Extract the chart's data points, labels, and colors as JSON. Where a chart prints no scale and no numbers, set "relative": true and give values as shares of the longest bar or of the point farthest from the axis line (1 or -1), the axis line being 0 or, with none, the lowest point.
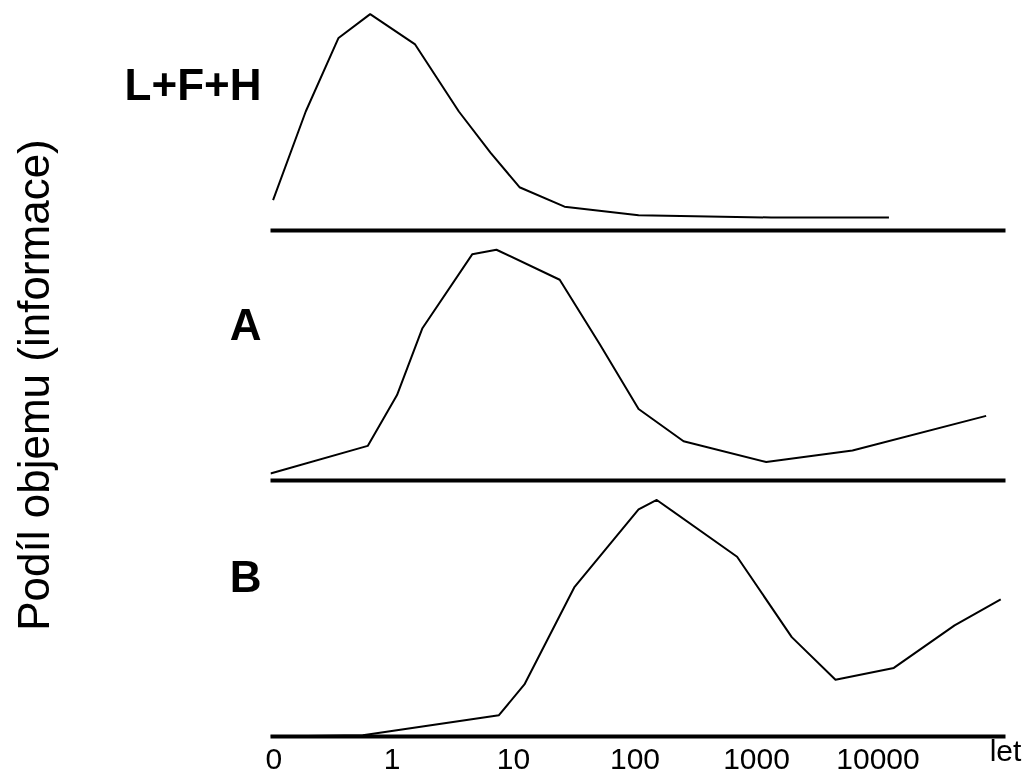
{
  "chart_data": [
    {
      "type": "line",
      "relative": true,
      "log": "x",
      "xlim": [
        0.1,
        112000
      ],
      "tick_labels": false,
      "grid": false,
      "legend": false,
      "series": [
        {
          "name": "L+F+H",
          "color": "#000000",
          "x": [
            0.105,
            0.195,
            0.363,
            0.661,
            1.55,
            3.55,
            6.46,
            11.2,
            26.3,
            107,
            1318,
            12300
          ],
          "values": [
            0.14,
            0.55,
            0.89,
            1,
            0.86,
            0.55,
            0.36,
            0.2,
            0.11,
            0.07,
            0.06,
            0.06
          ]
        }
      ]
    },
    {
      "type": "line",
      "relative": true,
      "log": "x",
      "ylabel": "Podíl objemu (informace)",
      "xlim": [
        0.1,
        112000
      ],
      "tick_labels": false,
      "grid": false,
      "legend": false,
      "series": [
        {
          "name": "A",
          "color": "#000000",
          "x": [
            0.1,
            0.631,
            1.1,
            1.78,
            4.57,
            7.24,
            24,
            51.3,
            107,
            251,
            1202,
            6166,
            77600
          ],
          "values": [
            0.03,
            0.15,
            0.37,
            0.66,
            0.98,
            1,
            0.87,
            0.59,
            0.31,
            0.17,
            0.08,
            0.13,
            0.28
          ]
        }
      ]
    },
    {
      "type": "line",
      "relative": true,
      "log": "x",
      "xlabel": "let",
      "xlim": [
        0.1,
        112000
      ],
      "xticks": [
        {
          "value": 0.1,
          "label": "0"
        },
        1,
        10,
        100,
        1000,
        10000
      ],
      "tick_labels": "x",
      "grid": false,
      "legend": false,
      "series": [
        {
          "name": "B",
          "color": "#000000",
          "x": [
            0.1,
            0.575,
            7.59,
            12.3,
            31.6,
            107,
            151,
            692,
            1950,
            4467,
            13490,
            42660,
            102300
          ],
          "values": [
            0,
            0.005,
            0.09,
            0.22,
            0.63,
            0.96,
            1,
            0.76,
            0.42,
            0.24,
            0.29,
            0.47,
            0.58
          ]
        }
      ]
    }
  ]
}
